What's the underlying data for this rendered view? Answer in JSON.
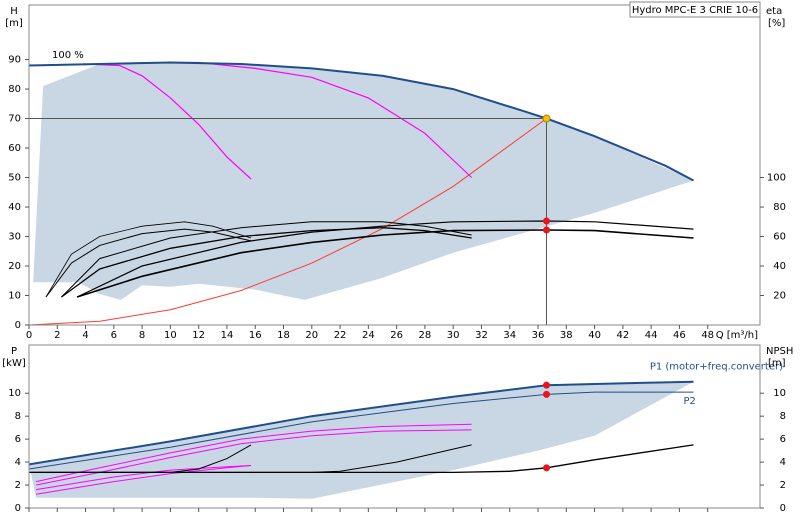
{
  "chart_data": [
    {
      "type": "line",
      "title": "Hydro MPC-E 3 CRIE 10-6",
      "ylabel": "H",
      "yunit": "[m]",
      "y2label": "eta",
      "y2unit": "[%]",
      "xlabel": "Q [m³/h]",
      "annotation": "100 %",
      "xlim": [
        0,
        51.7
      ],
      "xticks": [
        0,
        2,
        4,
        6,
        8,
        10,
        12,
        14,
        16,
        18,
        20,
        22,
        24,
        26,
        28,
        30,
        32,
        34,
        36,
        38,
        40,
        42,
        44,
        46,
        48
      ],
      "ylim": [
        0,
        108.5
      ],
      "yticks": [
        0,
        10,
        20,
        30,
        40,
        50,
        60,
        70,
        80,
        90
      ],
      "y2lim": [
        0,
        217
      ],
      "y2ticks": [
        20,
        40,
        60,
        80,
        100
      ],
      "series": [
        {
          "style": "area",
          "color": "#c9d6e3",
          "x": [
            0.3,
            1,
            5,
            10,
            15,
            20,
            25,
            30,
            36.6,
            40,
            47,
            40,
            30,
            25,
            19.5,
            16,
            12,
            10,
            8,
            6.5,
            5,
            3.5,
            1.5
          ],
          "values": [
            14.5,
            81,
            88.5,
            89,
            88.5,
            87,
            84.5,
            80,
            70,
            64,
            49,
            38,
            24.5,
            16,
            8.5,
            12,
            14,
            13,
            13.5,
            8.5,
            10.5,
            14.5,
            14.5
          ]
        },
        {
          "color": "#ff3b2f",
          "width": 1,
          "x": [
            0,
            5,
            10,
            15,
            20,
            25,
            30,
            36.6
          ],
          "values": [
            0,
            1.3,
            5.2,
            11.7,
            21,
            32.7,
            47,
            70
          ]
        },
        {
          "color": "#ff00ff",
          "width": 1.2,
          "x": [
            1,
            4,
            6.4,
            8,
            10,
            12,
            14,
            15.7
          ],
          "values": [
            88,
            88.5,
            88,
            84.5,
            77,
            68,
            57,
            49.5
          ]
        },
        {
          "color": "#ff00ff",
          "width": 1.2,
          "x": [
            6,
            10,
            12,
            16,
            20,
            24,
            28,
            31.3
          ],
          "values": [
            88.5,
            89,
            89,
            87,
            84,
            77,
            65,
            50
          ]
        },
        {
          "color": "#000000",
          "width": 0.8,
          "axis": "y2",
          "x": [
            1.2,
            3,
            5,
            8,
            11,
            13,
            15.7
          ],
          "values": [
            19,
            48,
            60,
            67,
            70,
            67,
            59
          ]
        },
        {
          "color": "#000000",
          "width": 1,
          "axis": "y2",
          "x": [
            1.2,
            3,
            5,
            8,
            11,
            13,
            15.7
          ],
          "values": [
            19,
            42,
            54,
            62,
            65,
            63,
            57
          ]
        },
        {
          "color": "#000000",
          "width": 1,
          "axis": "y2",
          "x": [
            2.3,
            5,
            10,
            15,
            20,
            25,
            28,
            31.3
          ],
          "values": [
            19,
            45,
            59,
            66,
            70,
            70,
            67,
            61
          ]
        },
        {
          "color": "#000000",
          "width": 1.3,
          "axis": "y2",
          "x": [
            2.3,
            5,
            10,
            15,
            20,
            25,
            28,
            31.3
          ],
          "values": [
            19,
            38,
            52,
            60,
            64,
            66,
            64,
            59
          ]
        },
        {
          "color": "#000000",
          "width": 1.2,
          "axis": "y2",
          "x": [
            3.4,
            8,
            15,
            20,
            25,
            30,
            36.6,
            40,
            47
          ],
          "values": [
            19,
            40,
            56,
            63,
            67,
            70,
            70.5,
            70,
            65
          ]
        },
        {
          "color": "#000000",
          "width": 1.6,
          "axis": "y2",
          "x": [
            3.4,
            8,
            15,
            20,
            25,
            30,
            36.6,
            40,
            47
          ],
          "values": [
            19,
            33,
            49,
            56,
            61,
            64,
            64.4,
            64,
            59
          ]
        },
        {
          "color": "#1f4e8c",
          "width": 2,
          "x": [
            0,
            5,
            10,
            15,
            20,
            25,
            30,
            35,
            36.6,
            40,
            45,
            47
          ],
          "values": [
            88,
            88.5,
            89,
            88.5,
            87,
            84.5,
            80,
            72.5,
            70,
            64,
            54,
            49
          ]
        }
      ],
      "points": [
        {
          "x": 36.6,
          "value": 70,
          "color": "#f5c400",
          "crosshair": true
        },
        {
          "x": 36.6,
          "value": 70.5,
          "color": "#e8141c",
          "axis": "y2"
        },
        {
          "x": 36.6,
          "value": 64.4,
          "color": "#e8141c",
          "axis": "y2"
        }
      ]
    },
    {
      "type": "line",
      "ylabel": "P",
      "yunit": "[kW]",
      "y2label": "NPSH",
      "y2unit": "[m]",
      "xlim": [
        0,
        51.7
      ],
      "ylim": [
        0,
        14.2
      ],
      "yticks": [
        0,
        2,
        4,
        6,
        8,
        10
      ],
      "y2lim": [
        0,
        14.2
      ],
      "y2ticks": [
        0,
        2,
        4,
        6,
        8,
        10
      ],
      "series": [
        {
          "style": "area",
          "color": "#c9d6e3",
          "x": [
            0,
            5,
            10,
            20,
            30,
            36.6,
            40,
            47,
            40,
            36,
            30,
            20,
            15.7,
            5,
            0.5
          ],
          "values": [
            3.8,
            4.7,
            5.8,
            8.0,
            9.7,
            10.6,
            10.8,
            11.0,
            6.3,
            5,
            3.3,
            0.8,
            0.9,
            0.9,
            0.9
          ]
        },
        {
          "color": "#ff00ff",
          "width": 1,
          "x": [
            0.5,
            3,
            6,
            10,
            14,
            15.7
          ],
          "values": [
            1.2,
            1.7,
            2.3,
            3.0,
            3.5,
            3.7
          ]
        },
        {
          "color": "#ff00ff",
          "width": 1,
          "x": [
            0.5,
            3,
            6,
            10,
            14,
            15.7
          ],
          "values": [
            1.6,
            2.1,
            2.7,
            3.3,
            3.6,
            3.7
          ]
        },
        {
          "color": "#ff00ff",
          "width": 1,
          "x": [
            0.5,
            5,
            10,
            15,
            20,
            25,
            31.3
          ],
          "values": [
            2.3,
            3.5,
            4.8,
            6.0,
            6.7,
            7.1,
            7.3
          ]
        },
        {
          "color": "#ff00ff",
          "width": 1,
          "x": [
            0.5,
            5,
            10,
            15,
            20,
            25,
            31.3
          ],
          "values": [
            2.0,
            3.1,
            4.4,
            5.6,
            6.3,
            6.7,
            6.8
          ]
        },
        {
          "color": "#000000",
          "width": 1,
          "axis": "y2",
          "x": [
            0,
            10,
            12,
            14,
            15.7
          ],
          "values": [
            3.1,
            3.1,
            3.4,
            4.3,
            5.5
          ]
        },
        {
          "color": "#000000",
          "width": 1,
          "axis": "y2",
          "x": [
            0,
            20,
            22,
            26,
            31.3
          ],
          "values": [
            3.1,
            3.1,
            3.2,
            4.0,
            5.5
          ]
        },
        {
          "color": "#000000",
          "width": 1.3,
          "axis": "y2",
          "x": [
            0,
            30,
            34,
            36.6,
            40,
            47
          ],
          "values": [
            3.1,
            3.1,
            3.2,
            3.5,
            4.2,
            5.5
          ]
        },
        {
          "name": "P2",
          "color": "#1f4e8c",
          "width": 1,
          "x": [
            0,
            10,
            20,
            30,
            36.6,
            40,
            47
          ],
          "values": [
            3.4,
            5.3,
            7.5,
            9.1,
            9.9,
            10.1,
            10.1
          ]
        },
        {
          "name": "P1 (motor+freq.converter)",
          "color": "#1f4e8c",
          "width": 2,
          "x": [
            0,
            10,
            20,
            30,
            36.6,
            40,
            47
          ],
          "values": [
            3.8,
            5.8,
            8.0,
            9.7,
            10.7,
            10.8,
            11.0
          ]
        }
      ],
      "points": [
        {
          "x": 36.6,
          "value": 10.7,
          "color": "#e8141c"
        },
        {
          "x": 36.6,
          "value": 9.9,
          "color": "#e8141c"
        },
        {
          "x": 36.6,
          "value": 3.5,
          "color": "#e8141c",
          "axis": "y2"
        }
      ]
    }
  ]
}
